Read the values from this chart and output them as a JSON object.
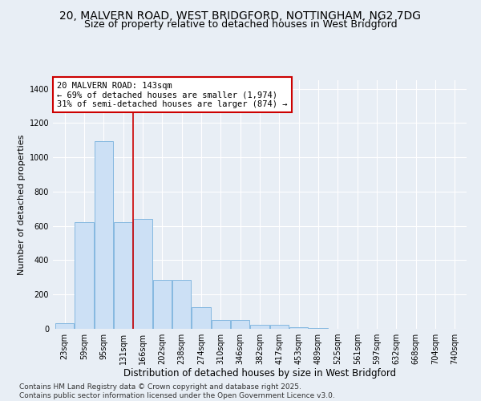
{
  "title1": "20, MALVERN ROAD, WEST BRIDGFORD, NOTTINGHAM, NG2 7DG",
  "title2": "Size of property relative to detached houses in West Bridgford",
  "xlabel": "Distribution of detached houses by size in West Bridgford",
  "ylabel": "Number of detached properties",
  "categories": [
    "23sqm",
    "59sqm",
    "95sqm",
    "131sqm",
    "166sqm",
    "202sqm",
    "238sqm",
    "274sqm",
    "310sqm",
    "346sqm",
    "382sqm",
    "417sqm",
    "453sqm",
    "489sqm",
    "525sqm",
    "561sqm",
    "597sqm",
    "632sqm",
    "668sqm",
    "704sqm",
    "740sqm"
  ],
  "values": [
    35,
    620,
    1095,
    620,
    640,
    285,
    285,
    125,
    50,
    50,
    22,
    22,
    10,
    5,
    0,
    0,
    0,
    0,
    0,
    0,
    0
  ],
  "bar_color": "#cce0f5",
  "bar_edge_color": "#85b8e0",
  "vline_color": "#cc0000",
  "annotation_text": "20 MALVERN ROAD: 143sqm\n← 69% of detached houses are smaller (1,974)\n31% of semi-detached houses are larger (874) →",
  "annotation_box_color": "#ffffff",
  "annotation_box_edge": "#cc0000",
  "ylim": [
    0,
    1450
  ],
  "yticks": [
    0,
    200,
    400,
    600,
    800,
    1000,
    1200,
    1400
  ],
  "bg_color": "#e8eef5",
  "plot_bg_color": "#e8eef5",
  "footer": "Contains HM Land Registry data © Crown copyright and database right 2025.\nContains public sector information licensed under the Open Government Licence v3.0.",
  "title1_fontsize": 10,
  "title2_fontsize": 9,
  "xlabel_fontsize": 8.5,
  "ylabel_fontsize": 8,
  "tick_fontsize": 7,
  "annotation_fontsize": 7.5,
  "footer_fontsize": 6.5
}
